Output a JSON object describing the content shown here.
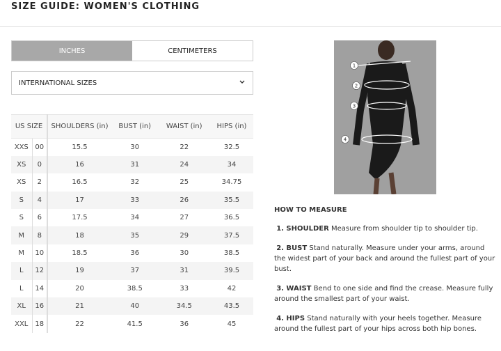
{
  "title": "SIZE GUIDE: WOMEN'S CLOTHING",
  "tabs": [
    {
      "label": "INCHES",
      "active": true
    },
    {
      "label": "CENTIMETERS",
      "active": false
    }
  ],
  "select": {
    "value": "INTERNATIONAL SIZES",
    "icon": "chevron-down-icon"
  },
  "table": {
    "headers": [
      "US SIZE",
      "SHOULDERS (in)",
      "BUST (in)",
      "WAIST (in)",
      "HIPS (in)"
    ],
    "rows": [
      [
        "XXS",
        "00",
        "15.5",
        "30",
        "22",
        "32.5"
      ],
      [
        "XS",
        "0",
        "16",
        "31",
        "24",
        "34"
      ],
      [
        "XS",
        "2",
        "16.5",
        "32",
        "25",
        "34.75"
      ],
      [
        "S",
        "4",
        "17",
        "33",
        "26",
        "35.5"
      ],
      [
        "S",
        "6",
        "17.5",
        "34",
        "27",
        "36.5"
      ],
      [
        "M",
        "8",
        "18",
        "35",
        "29",
        "37.5"
      ],
      [
        "M",
        "10",
        "18.5",
        "36",
        "30",
        "38.5"
      ],
      [
        "L",
        "12",
        "19",
        "37",
        "31",
        "39.5"
      ],
      [
        "L",
        "14",
        "20",
        "38.5",
        "33",
        "42"
      ],
      [
        "XL",
        "16",
        "21",
        "40",
        "34.5",
        "43.5"
      ],
      [
        "XXL",
        "18",
        "22",
        "41.5",
        "36",
        "45"
      ]
    ]
  },
  "photo": {
    "markers": [
      "1",
      "2",
      "3",
      "4"
    ]
  },
  "howto": {
    "heading": "HOW TO MEASURE",
    "items": [
      {
        "label": "1. SHOULDER",
        "text": " Measure from shoulder tip to shoulder tip."
      },
      {
        "label": "2. BUST",
        "text": "  Stand naturally. Measure under your arms, around the widest part of your back and around the fullest part of your bust."
      },
      {
        "label": "3. WAIST",
        "text": " Bend to one side and find the crease. Measure fully around the smallest part of your waist."
      },
      {
        "label": "4. HIPS",
        "text": " Stand naturally with your heels together. Measure around the fullest part of your hips across both hip bones."
      }
    ]
  }
}
